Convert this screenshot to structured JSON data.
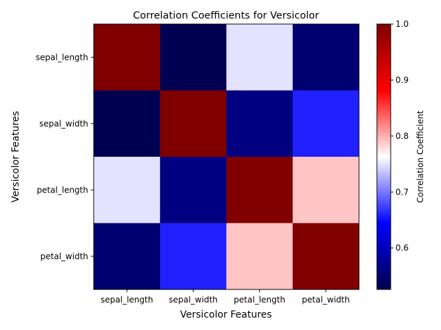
{
  "chart_data": {
    "type": "heatmap",
    "title": "Correlation Coefficients for Versicolor",
    "xlabel": "Versicolor Features",
    "ylabel": "Versicolor Features",
    "x_categories": [
      "sepal_length",
      "sepal_width",
      "petal_length",
      "petal_width"
    ],
    "y_categories": [
      "sepal_length",
      "sepal_width",
      "petal_length",
      "petal_width"
    ],
    "values": [
      [
        1.0,
        0.53,
        0.75,
        0.55
      ],
      [
        0.53,
        1.0,
        0.56,
        0.66
      ],
      [
        0.75,
        0.56,
        1.0,
        0.79
      ],
      [
        0.55,
        0.66,
        0.79,
        1.0
      ]
    ],
    "colormap": "seismic",
    "colorbar": {
      "label": "Correlation Coefficient",
      "range": [
        0.526,
        1.0
      ],
      "ticks": [
        "0.6",
        "0.7",
        "0.8",
        "0.9",
        "1.0"
      ]
    }
  }
}
